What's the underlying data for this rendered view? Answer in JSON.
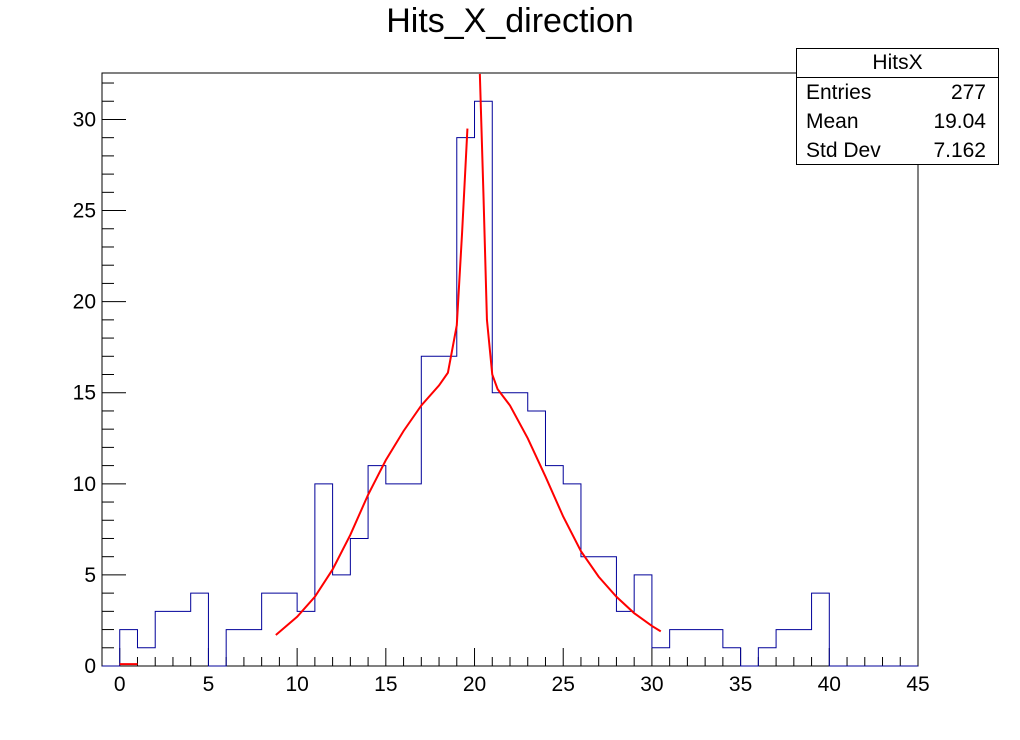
{
  "chart_data": {
    "type": "histogram",
    "title": "Hits_X_direction",
    "xlim": [
      -1,
      45
    ],
    "ylim": [
      0,
      32.55
    ],
    "x_ticks": [
      0,
      5,
      10,
      15,
      20,
      25,
      30,
      35,
      40,
      45
    ],
    "x_tick_labels": [
      "0",
      "5",
      "10",
      "15",
      "20",
      "25",
      "30",
      "35",
      "40",
      "45"
    ],
    "y_ticks": [
      0,
      5,
      10,
      15,
      20,
      25,
      30
    ],
    "y_tick_labels": [
      "0",
      "5",
      "10",
      "15",
      "20",
      "25",
      "30"
    ],
    "bin_edges": [
      -1,
      0,
      1,
      2,
      3,
      4,
      5,
      6,
      7,
      8,
      9,
      10,
      11,
      12,
      13,
      14,
      15,
      16,
      17,
      18,
      19,
      20,
      21,
      22,
      23,
      24,
      25,
      26,
      27,
      28,
      29,
      30,
      31,
      32,
      33,
      34,
      35,
      36,
      37,
      38,
      39,
      40,
      41,
      42,
      43,
      44,
      45
    ],
    "counts": [
      0,
      2,
      1,
      3,
      3,
      4,
      0,
      2,
      2,
      4,
      4,
      3,
      10,
      5,
      7,
      11,
      10,
      10,
      17,
      17,
      29,
      31,
      15,
      15,
      14,
      11,
      10,
      6,
      6,
      3,
      5,
      1,
      2,
      2,
      2,
      1,
      0,
      1,
      2,
      2,
      4,
      0,
      0,
      0,
      0,
      0
    ],
    "histogram_color": "#000099",
    "fit": {
      "color": "#ff0000",
      "segments": [
        {
          "name": "left",
          "x": [
            8.8,
            10,
            11,
            12,
            13,
            14,
            15,
            16,
            17,
            18,
            18.5,
            19,
            19.3,
            19.6
          ],
          "y": [
            1.7,
            2.7,
            3.8,
            5.3,
            7.2,
            9.4,
            11.3,
            12.9,
            14.3,
            15.4,
            16.1,
            18.7,
            23.8,
            29.5
          ]
        },
        {
          "name": "right",
          "x": [
            20.3,
            20.5,
            20.7,
            21,
            21.3,
            22,
            23,
            24,
            25,
            26,
            27,
            28,
            29,
            30,
            30.5
          ],
          "y": [
            32.5,
            26,
            19,
            16,
            15.2,
            14.3,
            12.5,
            10.4,
            8.2,
            6.3,
            4.9,
            3.8,
            2.9,
            2.2,
            1.9
          ]
        },
        {
          "name": "baseline",
          "x": [
            0,
            1
          ],
          "y": [
            0.1,
            0.1
          ]
        }
      ]
    },
    "stats_box": {
      "title": "HitsX",
      "rows": [
        {
          "label": "Entries",
          "value": "277"
        },
        {
          "label": "Mean",
          "value": "19.04"
        },
        {
          "label": "Std Dev",
          "value": "7.162"
        }
      ]
    }
  }
}
